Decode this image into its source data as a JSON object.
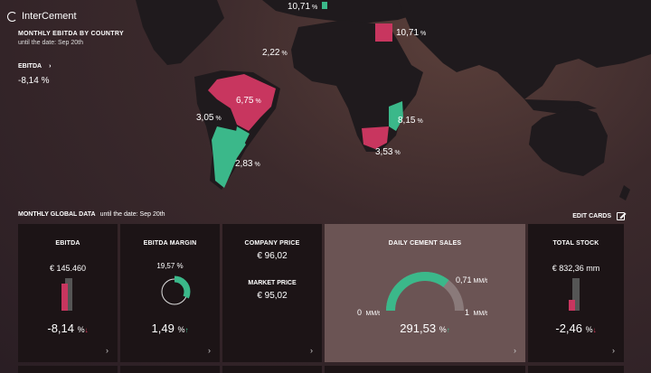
{
  "brand": "InterCement",
  "map": {
    "title": "MONTHLY EBITDA BY COUNTRY",
    "subtitle": "until the date: Sep 20th",
    "ebitda_label": "EBITDA",
    "ebitda_arrow": "›",
    "ebitda_value": "-8,14 %",
    "labels": [
      {
        "value": "10,71",
        "unit": "%"
      },
      {
        "value": "10,71",
        "unit": "%"
      },
      {
        "value": "2,22",
        "unit": "%"
      },
      {
        "value": "6,75",
        "unit": "%"
      },
      {
        "value": "3,05",
        "unit": "%"
      },
      {
        "value": "8,15",
        "unit": "%"
      },
      {
        "value": "3,53",
        "unit": "%"
      },
      {
        "value": "2,83",
        "unit": "%"
      }
    ],
    "colors": {
      "negative": "#c8365f",
      "positive": "#3bb88a",
      "land": "#1e1b1d"
    }
  },
  "section": {
    "title": "MONTHLY  GLOBAL DATA",
    "subtitle": "until the date: Sep 20th",
    "edit_cards": "EDIT CARDS"
  },
  "cards": {
    "ebitda": {
      "title": "EBITDA",
      "amount": "€ 145.460",
      "change": "-8,14",
      "unit": "%",
      "arrow": "↓"
    },
    "margin": {
      "title": "EBITDA MARGIN",
      "gauge_pct": "19,57 %",
      "gauge_fraction": 0.32,
      "change": "1,49",
      "unit": "%",
      "arrow": "↑"
    },
    "price": {
      "company_title": "COMPANY PRICE",
      "company_value": "€ 96,02",
      "market_title": "MARKET PRICE",
      "market_value": "€ 95,02"
    },
    "sales": {
      "title": "DAILY CEMENT SALES",
      "max_label": "0,71",
      "max_unit": "MM/t",
      "zero": "0",
      "zero_unit": "MM/t",
      "one": "1",
      "one_unit": "MM/t",
      "value": "291,53",
      "unit": "%",
      "arrow": "↑",
      "gauge_fraction": 0.71
    },
    "stock": {
      "title": "TOTAL STOCK",
      "amount": "€ 832,36 mm",
      "change": "-2,46",
      "unit": "%",
      "arrow": "↓"
    },
    "arrow": "›"
  }
}
